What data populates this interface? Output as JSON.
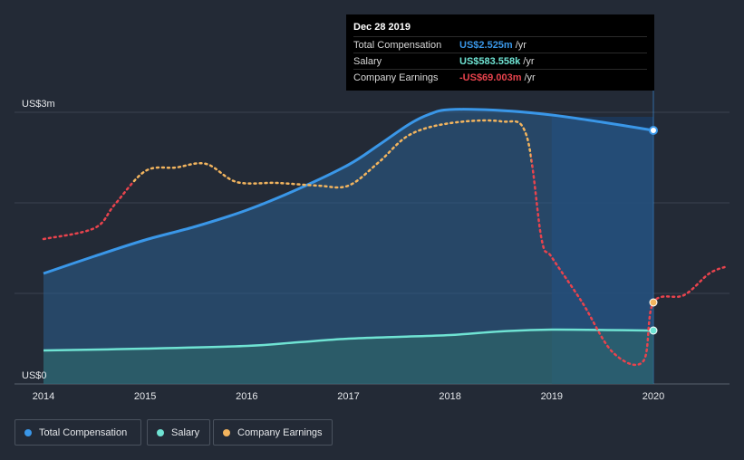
{
  "chart_data": {
    "type": "area",
    "ylim": [
      0,
      3.0
    ],
    "y_tick_labels": [
      {
        "value": 3.0,
        "label": "US$3m"
      },
      {
        "value": 0,
        "label": "US$0"
      }
    ],
    "x_ticks": [
      2014,
      2015,
      2016,
      2017,
      2018,
      2019,
      2020
    ],
    "x_range": [
      2013.7,
      2020.73
    ],
    "tooltip": {
      "date": "Dec 28 2019",
      "rows": [
        {
          "name": "Total Compensation",
          "value": "US$2.525m",
          "unit": "/yr",
          "color": "#3a97e8"
        },
        {
          "name": "Salary",
          "value": "US$583.558k",
          "unit": "/yr",
          "color": "#6fe3d3"
        },
        {
          "name": "Company Earnings",
          "value": "-US$69.003m",
          "unit": "/yr",
          "color": "#e8434d"
        }
      ]
    },
    "series": [
      {
        "name": "Total Compensation",
        "color": "#3a97e8",
        "style": "solid-area",
        "x": [
          2014.0,
          2014.5,
          2015.0,
          2015.5,
          2016.0,
          2016.5,
          2017.0,
          2017.3,
          2017.6,
          2017.8,
          2018.0,
          2018.5,
          2019.0,
          2019.5,
          2020.0
        ],
        "y": [
          1.22,
          1.41,
          1.59,
          1.74,
          1.92,
          2.15,
          2.42,
          2.64,
          2.87,
          2.98,
          3.03,
          3.02,
          2.97,
          2.89,
          2.8
        ]
      },
      {
        "name": "Salary",
        "color": "#6fe3d3",
        "style": "solid-area",
        "x": [
          2014.0,
          2015.0,
          2016.0,
          2016.5,
          2017.0,
          2017.5,
          2018.0,
          2018.5,
          2019.0,
          2020.0
        ],
        "y": [
          0.37,
          0.39,
          0.42,
          0.46,
          0.5,
          0.52,
          0.54,
          0.58,
          0.6,
          0.59
        ]
      },
      {
        "name": "Company Earnings",
        "style": "dotted",
        "color_pos": "#f2b45e",
        "color_neg": "#e8434d",
        "x": [
          2014.0,
          2014.5,
          2014.7,
          2015.0,
          2015.3,
          2015.6,
          2015.9,
          2016.3,
          2016.7,
          2017.0,
          2017.3,
          2017.6,
          2018.0,
          2018.5,
          2018.75,
          2018.9,
          2019.0,
          2019.3,
          2019.6,
          2019.9,
          2020.0,
          2020.3,
          2020.55,
          2020.73
        ],
        "y": [
          1.6,
          1.72,
          1.98,
          2.35,
          2.39,
          2.43,
          2.23,
          2.22,
          2.19,
          2.19,
          2.45,
          2.75,
          2.88,
          2.9,
          2.75,
          1.6,
          1.4,
          0.9,
          0.35,
          0.25,
          0.9,
          0.98,
          1.22,
          1.3
        ],
        "negative_from_x": 2018.8
      }
    ],
    "highlight_from_x": 2019.0
  },
  "legend": [
    {
      "label": "Total Compensation",
      "color": "#3a97e8"
    },
    {
      "label": "Salary",
      "color": "#6fe3d3"
    },
    {
      "label": "Company Earnings",
      "color": "#f2b45e"
    }
  ]
}
